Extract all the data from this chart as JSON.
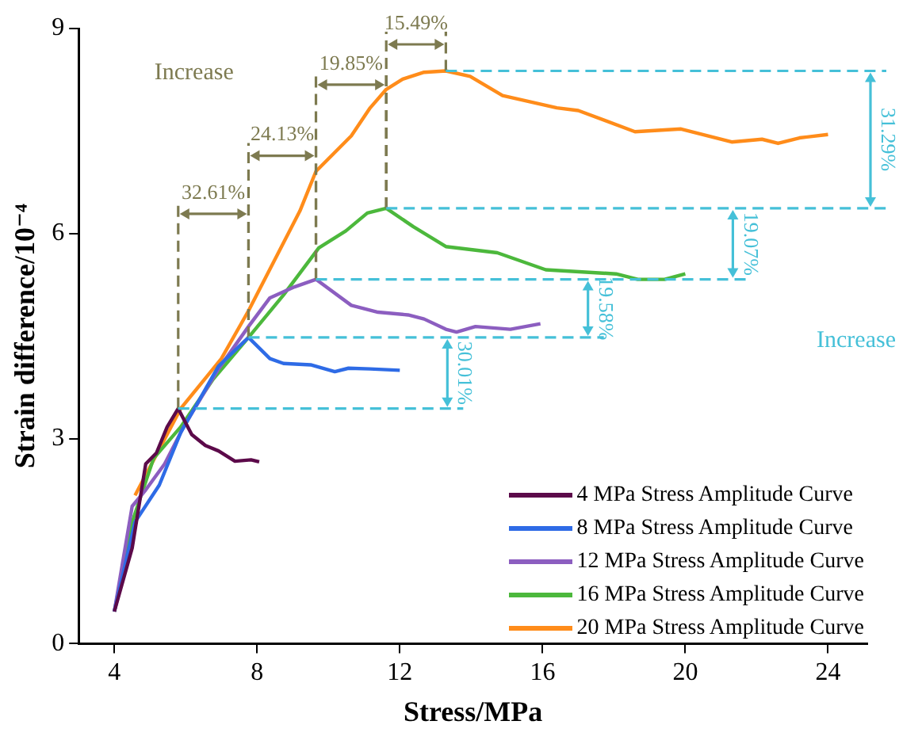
{
  "chart_data": {
    "type": "line",
    "xlabel": "Stress/MPa",
    "ylabel": "Strain difference/10⁻⁴",
    "xlim": [
      3,
      25.1
    ],
    "xticks": [
      4,
      8,
      12,
      16,
      20,
      24
    ],
    "ylim": [
      0,
      9
    ],
    "yticks": [
      0,
      3,
      6,
      9
    ],
    "grid": false,
    "legend": "bottom right",
    "marker": "none",
    "line_style": "solid",
    "series": [
      {
        "name": "4 MPa Stress Amplitude Curve",
        "color": "#5c0a4a",
        "x": [
          4.0,
          4.5,
          4.88,
          5.18,
          5.48,
          5.79,
          6.17,
          6.55,
          6.92,
          7.38,
          7.83,
          8.06
        ],
        "values": [
          0.47,
          1.4,
          2.63,
          2.79,
          3.17,
          3.44,
          3.06,
          2.9,
          2.82,
          2.67,
          2.69,
          2.66
        ]
      },
      {
        "name": "8 MPa Stress Amplitude Curve",
        "color": "#2e6be6",
        "x": [
          4.0,
          4.58,
          5.26,
          5.86,
          6.92,
          7.76,
          8.36,
          8.74,
          9.5,
          10.18,
          10.56,
          11.17,
          12.0
        ],
        "values": [
          0.47,
          1.78,
          2.32,
          3.09,
          4.06,
          4.48,
          4.17,
          4.1,
          4.08,
          3.98,
          4.03,
          4.02,
          4.0
        ]
      },
      {
        "name": "12 MPa Stress Amplitude Curve",
        "color": "#8c5ec0",
        "x": [
          4.0,
          4.5,
          4.88,
          5.41,
          5.94,
          6.92,
          7.76,
          8.36,
          9.05,
          9.65,
          10.64,
          11.39,
          12.23,
          12.68,
          13.29,
          13.59,
          14.12,
          15.1,
          15.94
        ],
        "values": [
          0.47,
          2.01,
          2.25,
          2.63,
          3.17,
          4.02,
          4.64,
          5.06,
          5.22,
          5.33,
          4.95,
          4.85,
          4.81,
          4.75,
          4.6,
          4.56,
          4.64,
          4.6,
          4.68
        ]
      },
      {
        "name": "16 MPa Stress Amplitude Curve",
        "color": "#4cb83c",
        "x": [
          4.0,
          4.5,
          5.1,
          5.86,
          6.77,
          7.76,
          8.74,
          9.73,
          10.49,
          11.09,
          11.62,
          12.38,
          13.29,
          14.73,
          16.09,
          18.06,
          18.67,
          19.42,
          20.0
        ],
        "values": [
          0.47,
          1.78,
          2.71,
          3.17,
          3.87,
          4.48,
          5.1,
          5.79,
          6.04,
          6.3,
          6.37,
          6.1,
          5.81,
          5.72,
          5.47,
          5.41,
          5.33,
          5.33,
          5.41
        ]
      },
      {
        "name": "20 MPa Stress Amplitude Curve",
        "color": "#ff8c1a",
        "x": [
          4.58,
          5.86,
          7.0,
          7.76,
          8.44,
          9.2,
          9.65,
          10.64,
          11.17,
          11.62,
          12.08,
          12.68,
          13.29,
          13.97,
          14.88,
          16.4,
          17.0,
          18.59,
          19.88,
          21.3,
          22.15,
          22.6,
          23.2,
          24.0
        ],
        "values": [
          2.17,
          3.44,
          4.17,
          4.87,
          5.56,
          6.33,
          6.91,
          7.43,
          7.84,
          8.11,
          8.26,
          8.36,
          8.38,
          8.3,
          8.02,
          7.84,
          7.8,
          7.49,
          7.53,
          7.34,
          7.38,
          7.32,
          7.4,
          7.45
        ]
      }
    ],
    "annotations": [
      "Increase",
      {
        "text": "32.61%",
        "x": 7.76,
        "y": 4.48
      },
      {
        "text": "24.13%",
        "x": 9.65,
        "y": 5.33
      },
      {
        "text": "19.85%",
        "x": 11.62,
        "y": 6.37
      },
      {
        "text": "15.49%",
        "x": 13.29,
        "y": 8.38
      },
      "Increase",
      "30.01%",
      "19.58%",
      "19.07%",
      "31.29%"
    ],
    "ref_lines": [
      {
        "axis": "y",
        "value": 3.44,
        "color": "#45c0d8",
        "line_style": "dashed"
      },
      {
        "axis": "y",
        "value": 4.48,
        "color": "#45c0d8",
        "line_style": "dashed"
      },
      {
        "axis": "y",
        "value": 5.33,
        "color": "#45c0d8",
        "line_style": "dashed"
      },
      {
        "axis": "y",
        "value": 6.37,
        "color": "#45c0d8",
        "line_style": "dashed"
      },
      {
        "axis": "y",
        "value": 8.38,
        "color": "#45c0d8",
        "line_style": "dashed"
      }
    ]
  }
}
